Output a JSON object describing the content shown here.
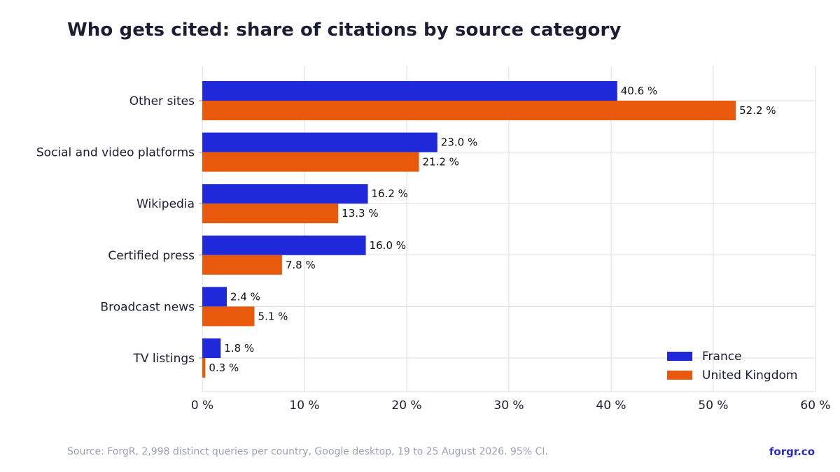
{
  "title": "Who gets cited: share of citations by source category",
  "footer": {
    "source": "Source: ForgR, 2,998 distinct queries per country, Google desktop, 19 to 25 August 2026. 95% CI.",
    "brand": "forgr.co"
  },
  "colors": {
    "france": "#2029d9",
    "united_kingdom": "#e8590c",
    "text": "#1b1e33",
    "grid": "#dddddd"
  },
  "chart_data": {
    "type": "bar",
    "orientation": "horizontal",
    "title": "Who gets cited: share of citations by source category",
    "categories": [
      "Other sites",
      "Social and video platforms",
      "Wikipedia",
      "Certified press",
      "Broadcast news",
      "TV listings"
    ],
    "series": [
      {
        "name": "France",
        "color": "#2029d9",
        "values": [
          40.6,
          23.0,
          16.2,
          16.0,
          2.4,
          1.8
        ],
        "labels": [
          "40.6 %",
          "23.0 %",
          "16.2 %",
          "16.0 %",
          "2.4 %",
          "1.8 %"
        ]
      },
      {
        "name": "United Kingdom",
        "color": "#e8590c",
        "values": [
          52.2,
          21.2,
          13.3,
          7.8,
          5.1,
          0.3
        ],
        "labels": [
          "52.2 %",
          "21.2 %",
          "13.3 %",
          "7.8 %",
          "5.1 %",
          "0.3 %"
        ]
      }
    ],
    "xlim": [
      0,
      60
    ],
    "xticks": [
      0,
      10,
      20,
      30,
      40,
      50,
      60
    ],
    "xtick_labels": [
      "0 %",
      "10 %",
      "20 %",
      "30 %",
      "40 %",
      "50 %",
      "60 %"
    ],
    "grid": true,
    "legend": "bottom-right"
  }
}
